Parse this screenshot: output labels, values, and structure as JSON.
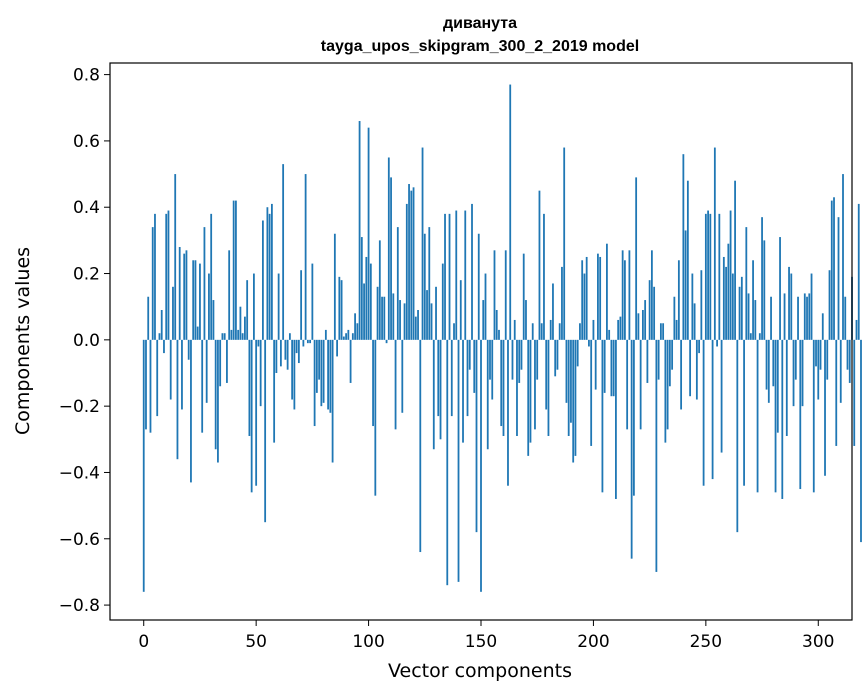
{
  "chart_data": {
    "type": "bar",
    "title_line1": "диванута",
    "title_line2": "tayga_upos_skipgram_300_2_2019 model",
    "xlabel": "Vector components",
    "ylabel": "Components values",
    "xlim": [
      -15,
      315
    ],
    "ylim": [
      -0.845,
      0.835
    ],
    "xticks": [
      0,
      50,
      100,
      150,
      200,
      250,
      300
    ],
    "xtick_labels": [
      "0",
      "50",
      "100",
      "150",
      "200",
      "250",
      "300"
    ],
    "yticks": [
      0.8,
      0.6,
      0.4,
      0.2,
      0.0,
      -0.2,
      -0.4,
      -0.6,
      -0.8
    ],
    "ytick_labels": [
      "0.8",
      "0.6",
      "0.4",
      "0.2",
      "0.0",
      "−0.2",
      "−0.4",
      "−0.6",
      "−0.8"
    ],
    "bar_color": "#1f77b4",
    "values": [
      -0.76,
      -0.27,
      0.13,
      -0.28,
      0.34,
      0.38,
      -0.23,
      0.02,
      0.09,
      -0.04,
      0.38,
      0.39,
      -0.18,
      0.16,
      0.5,
      -0.36,
      0.28,
      -0.21,
      0.26,
      0.27,
      -0.06,
      -0.43,
      0.24,
      0.24,
      0.04,
      0.23,
      -0.28,
      0.34,
      -0.19,
      0.2,
      0.38,
      0.12,
      -0.33,
      -0.37,
      -0.14,
      0.02,
      0.02,
      -0.13,
      0.27,
      0.03,
      0.42,
      0.42,
      0.03,
      0.1,
      0.02,
      0.07,
      0.18,
      -0.29,
      -0.46,
      0.2,
      -0.44,
      -0.02,
      -0.2,
      0.36,
      -0.55,
      0.4,
      0.38,
      0.41,
      -0.31,
      -0.1,
      0.2,
      -0.08,
      0.53,
      -0.06,
      -0.09,
      0.02,
      -0.18,
      -0.21,
      -0.04,
      -0.07,
      0.21,
      -0.02,
      0.5,
      -0.01,
      -0.01,
      0.23,
      -0.26,
      -0.16,
      -0.12,
      -0.2,
      -0.19,
      0.03,
      -0.21,
      -0.22,
      -0.37,
      0.32,
      -0.05,
      0.19,
      0.18,
      0.01,
      0.02,
      0.03,
      -0.13,
      0.02,
      0.08,
      0.05,
      0.66,
      0.31,
      0.17,
      0.25,
      0.64,
      0.23,
      -0.26,
      -0.47,
      0.16,
      0.3,
      0.13,
      0.13,
      -0.01,
      0.55,
      0.49,
      0.14,
      -0.27,
      0.34,
      0.12,
      -0.22,
      0.11,
      0.41,
      0.47,
      0.45,
      0.46,
      0.07,
      0.09,
      -0.64,
      0.58,
      0.32,
      0.15,
      0.34,
      0.11,
      -0.33,
      0.16,
      -0.23,
      -0.3,
      0.23,
      0.38,
      -0.74,
      0.38,
      -0.23,
      0.05,
      0.39,
      -0.73,
      0.18,
      -0.31,
      0.39,
      -0.23,
      -0.09,
      0.41,
      -0.16,
      -0.58,
      0.32,
      -0.76,
      0.12,
      0.2,
      -0.33,
      -0.12,
      -0.18,
      0.27,
      0.09,
      0.03,
      -0.26,
      -0.29,
      0.27,
      -0.44,
      0.77,
      -0.12,
      0.06,
      -0.29,
      -0.13,
      -0.09,
      0.26,
      0.12,
      -0.35,
      -0.31,
      0.05,
      -0.27,
      -0.12,
      0.45,
      0.05,
      0.38,
      -0.21,
      -0.29,
      0.06,
      0.17,
      -0.11,
      -0.09,
      0.05,
      0.22,
      0.58,
      -0.19,
      -0.29,
      -0.25,
      -0.37,
      -0.35,
      -0.08,
      0.05,
      0.24,
      0.2,
      0.25,
      -0.02,
      -0.32,
      0.06,
      -0.15,
      0.26,
      0.25,
      -0.46,
      -0.16,
      0.29,
      0.03,
      -0.17,
      -0.17,
      -0.48,
      0.06,
      0.07,
      0.27,
      0.24,
      -0.27,
      0.27,
      -0.66,
      -0.47,
      0.49,
      0.08,
      -0.27,
      0.09,
      0.12,
      -0.13,
      0.18,
      0.27,
      0.16,
      -0.7,
      -0.12,
      0.05,
      0.05,
      -0.31,
      -0.27,
      -0.14,
      -0.09,
      0.13,
      0.06,
      0.24,
      -0.21,
      0.56,
      0.33,
      0.48,
      -0.17,
      0.2,
      0.11,
      -0.18,
      -0.04,
      0.21,
      -0.44,
      0.38,
      0.39,
      0.38,
      -0.42,
      0.58,
      -0.02,
      0.38,
      -0.34,
      0.25,
      0.22,
      0.29,
      0.39,
      0.2,
      0.48,
      -0.58,
      0.16,
      0.19,
      -0.44,
      0.34,
      0.14,
      0.02,
      0.24,
      0.12,
      -0.46,
      0.02,
      0.37,
      0.3,
      -0.15,
      -0.19,
      0.13,
      -0.14,
      -0.46,
      -0.28,
      0.31,
      -0.48,
      0.14,
      -0.29,
      0.22,
      0.2,
      -0.2,
      -0.12,
      0.13,
      -0.45,
      -0.2,
      0.14,
      0.13,
      0.14,
      0.2,
      -0.46,
      -0.08,
      -0.18,
      -0.09,
      0.08,
      -0.41,
      -0.12,
      0.21,
      0.42,
      0.43,
      -0.32,
      0.37,
      -0.19,
      0.5,
      0.13,
      -0.09,
      -0.13,
      0.19,
      -0.32,
      0.06,
      0.41,
      -0.61
    ]
  }
}
